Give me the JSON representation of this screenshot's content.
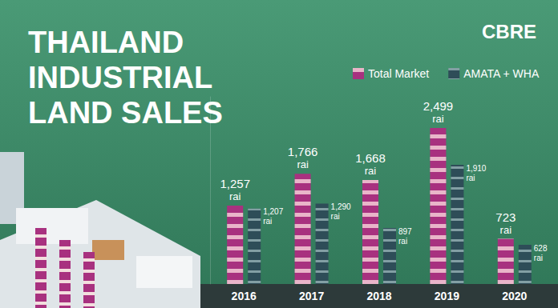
{
  "chart_data": {
    "type": "bar",
    "title": "THAILAND\nINDUSTRIAL\nLAND SALES",
    "logo": "CBRE",
    "categories": [
      "2016",
      "2017",
      "2018",
      "2019",
      "2020"
    ],
    "series": [
      {
        "name": "Total Market",
        "color": "#a8317f",
        "values": [
          1257,
          1766,
          1668,
          2499,
          723
        ],
        "value_labels": [
          "1,257\nrai",
          "1,766\nrai",
          "1,668\nrai",
          "2,499\nrai",
          "723\nrai"
        ]
      },
      {
        "name": "AMATA + WHA",
        "color": "#2e4d58",
        "values": [
          1207,
          1290,
          897,
          1910,
          628
        ],
        "value_labels": [
          "1,207\nrai",
          "1,290\nrai",
          "897\nrai",
          "1,910\nrai",
          "628\nrai"
        ]
      }
    ],
    "ylim": [
      0,
      3000
    ],
    "tick_labels": "x",
    "data_labels": true,
    "legend": "top-right",
    "grid": false
  }
}
